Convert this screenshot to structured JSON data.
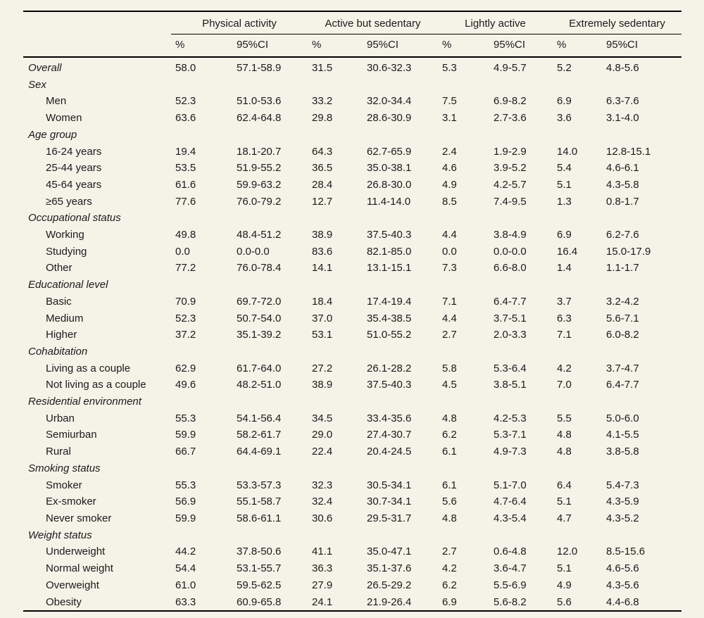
{
  "colors": {
    "background": "#f5f2e8",
    "rule": "#000000",
    "text": "#1a1a1a"
  },
  "table": {
    "column_groups": [
      {
        "label": "Physical activity"
      },
      {
        "label": "Active but sedentary"
      },
      {
        "label": "Lightly active"
      },
      {
        "label": "Extremely sedentary"
      }
    ],
    "subheaders": [
      "%",
      "95%CI"
    ],
    "rows": [
      {
        "type": "group-data",
        "label": "Overall",
        "values": [
          "58.0",
          "57.1-58.9",
          "31.5",
          "30.6-32.3",
          "5.3",
          "4.9-5.7",
          "5.2",
          "4.8-5.6"
        ]
      },
      {
        "type": "group",
        "label": "Sex"
      },
      {
        "type": "item",
        "label": "Men",
        "values": [
          "52.3",
          "51.0-53.6",
          "33.2",
          "32.0-34.4",
          "7.5",
          "6.9-8.2",
          "6.9",
          "6.3-7.6"
        ]
      },
      {
        "type": "item",
        "label": "Women",
        "values": [
          "63.6",
          "62.4-64.8",
          "29.8",
          "28.6-30.9",
          "3.1",
          "2.7-3.6",
          "3.6",
          "3.1-4.0"
        ]
      },
      {
        "type": "group",
        "label": "Age group"
      },
      {
        "type": "item",
        "label": "16-24 years",
        "values": [
          "19.4",
          "18.1-20.7",
          "64.3",
          "62.7-65.9",
          "2.4",
          "1.9-2.9",
          "14.0",
          "12.8-15.1"
        ]
      },
      {
        "type": "item",
        "label": "25-44 years",
        "values": [
          "53.5",
          "51.9-55.2",
          "36.5",
          "35.0-38.1",
          "4.6",
          "3.9-5.2",
          "5.4",
          "4.6-6.1"
        ]
      },
      {
        "type": "item",
        "label": "45-64 years",
        "values": [
          "61.6",
          "59.9-63.2",
          "28.4",
          "26.8-30.0",
          "4.9",
          "4.2-5.7",
          "5.1",
          "4.3-5.8"
        ]
      },
      {
        "type": "item",
        "label": "≥65 years",
        "values": [
          "77.6",
          "76.0-79.2",
          "12.7",
          "11.4-14.0",
          "8.5",
          "7.4-9.5",
          "1.3",
          "0.8-1.7"
        ]
      },
      {
        "type": "group",
        "label": "Occupational status"
      },
      {
        "type": "item",
        "label": "Working",
        "values": [
          "49.8",
          "48.4-51.2",
          "38.9",
          "37.5-40.3",
          "4.4",
          "3.8-4.9",
          "6.9",
          "6.2-7.6"
        ]
      },
      {
        "type": "item",
        "label": "Studying",
        "values": [
          "0.0",
          "0.0-0.0",
          "83.6",
          "82.1-85.0",
          "0.0",
          "0.0-0.0",
          "16.4",
          "15.0-17.9"
        ]
      },
      {
        "type": "item",
        "label": "Other",
        "values": [
          "77.2",
          "76.0-78.4",
          "14.1",
          "13.1-15.1",
          "7.3",
          "6.6-8.0",
          "1.4",
          "1.1-1.7"
        ]
      },
      {
        "type": "group",
        "label": "Educational level"
      },
      {
        "type": "item",
        "label": "Basic",
        "values": [
          "70.9",
          "69.7-72.0",
          "18.4",
          "17.4-19.4",
          "7.1",
          "6.4-7.7",
          "3.7",
          "3.2-4.2"
        ]
      },
      {
        "type": "item",
        "label": "Medium",
        "values": [
          "52.3",
          "50.7-54.0",
          "37.0",
          "35.4-38.5",
          "4.4",
          "3.7-5.1",
          "6.3",
          "5.6-7.1"
        ]
      },
      {
        "type": "item",
        "label": "Higher",
        "values": [
          "37.2",
          "35.1-39.2",
          "53.1",
          "51.0-55.2",
          "2.7",
          "2.0-3.3",
          "7.1",
          "6.0-8.2"
        ]
      },
      {
        "type": "group",
        "label": "Cohabitation"
      },
      {
        "type": "item",
        "label": "Living as a couple",
        "values": [
          "62.9",
          "61.7-64.0",
          "27.2",
          "26.1-28.2",
          "5.8",
          "5.3-6.4",
          "4.2",
          "3.7-4.7"
        ]
      },
      {
        "type": "item",
        "label": "Not living as a couple",
        "values": [
          "49.6",
          "48.2-51.0",
          "38.9",
          "37.5-40.3",
          "4.5",
          "3.8-5.1",
          "7.0",
          "6.4-7.7"
        ]
      },
      {
        "type": "group",
        "label": "Residential environment"
      },
      {
        "type": "item",
        "label": "Urban",
        "values": [
          "55.3",
          "54.1-56.4",
          "34.5",
          "33.4-35.6",
          "4.8",
          "4.2-5.3",
          "5.5",
          "5.0-6.0"
        ]
      },
      {
        "type": "item",
        "label": "Semiurban",
        "values": [
          "59.9",
          "58.2-61.7",
          "29.0",
          "27.4-30.7",
          "6.2",
          "5.3-7.1",
          "4.8",
          "4.1-5.5"
        ]
      },
      {
        "type": "item",
        "label": "Rural",
        "values": [
          "66.7",
          "64.4-69.1",
          "22.4",
          "20.4-24.5",
          "6.1",
          "4.9-7.3",
          "4.8",
          "3.8-5.8"
        ]
      },
      {
        "type": "group",
        "label": "Smoking status"
      },
      {
        "type": "item",
        "label": "Smoker",
        "values": [
          "55.3",
          "53.3-57.3",
          "32.3",
          "30.5-34.1",
          "6.1",
          "5.1-7.0",
          "6.4",
          "5.4-7.3"
        ]
      },
      {
        "type": "item",
        "label": "Ex-smoker",
        "values": [
          "56.9",
          "55.1-58.7",
          "32.4",
          "30.7-34.1",
          "5.6",
          "4.7-6.4",
          "5.1",
          "4.3-5.9"
        ]
      },
      {
        "type": "item",
        "label": "Never smoker",
        "values": [
          "59.9",
          "58.6-61.1",
          "30.6",
          "29.5-31.7",
          "4.8",
          "4.3-5.4",
          "4.7",
          "4.3-5.2"
        ]
      },
      {
        "type": "group",
        "label": "Weight status"
      },
      {
        "type": "item",
        "label": "Underweight",
        "values": [
          "44.2",
          "37.8-50.6",
          "41.1",
          "35.0-47.1",
          "2.7",
          "0.6-4.8",
          "12.0",
          "8.5-15.6"
        ]
      },
      {
        "type": "item",
        "label": "Normal weight",
        "values": [
          "54.4",
          "53.1-55.7",
          "36.3",
          "35.1-37.6",
          "4.2",
          "3.6-4.7",
          "5.1",
          "4.6-5.6"
        ]
      },
      {
        "type": "item",
        "label": "Overweight",
        "values": [
          "61.0",
          "59.5-62.5",
          "27.9",
          "26.5-29.2",
          "6.2",
          "5.5-6.9",
          "4.9",
          "4.3-5.6"
        ]
      },
      {
        "type": "item",
        "label": "Obesity",
        "values": [
          "63.3",
          "60.9-65.8",
          "24.1",
          "21.9-26.4",
          "6.9",
          "5.6-8.2",
          "5.6",
          "4.4-6.8"
        ]
      }
    ]
  }
}
